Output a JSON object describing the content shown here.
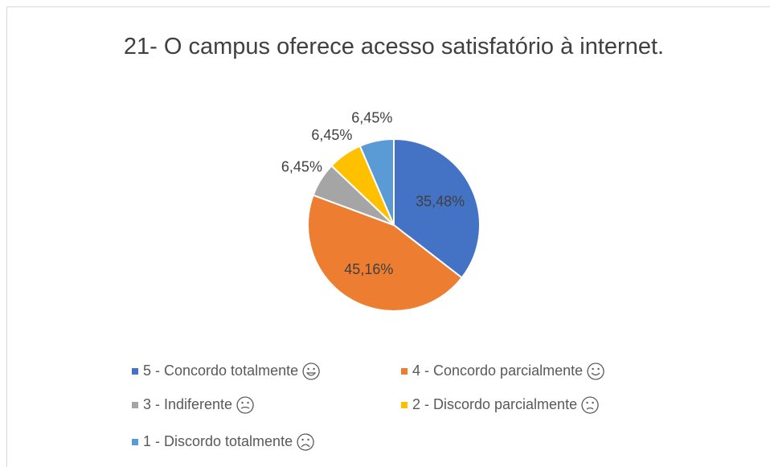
{
  "chart_data": {
    "type": "pie",
    "title": "21- O campus oferece acesso satisfatório à internet.",
    "categories": [
      "5 - Concordo totalmente",
      "4 - Concordo parcialmente",
      "3 - Indiferente",
      "2 - Discordo parcialmente",
      "1 - Discordo totalmente"
    ],
    "values": [
      35.48,
      45.16,
      6.45,
      6.45,
      6.45
    ],
    "value_labels": [
      "35,48%",
      "45,16%",
      "6,45%",
      "6,45%",
      "6,45%"
    ],
    "colors": [
      "#4472c4",
      "#ed7d31",
      "#a5a5a5",
      "#ffc000",
      "#5b9bd5"
    ],
    "legend": "bottom"
  }
}
